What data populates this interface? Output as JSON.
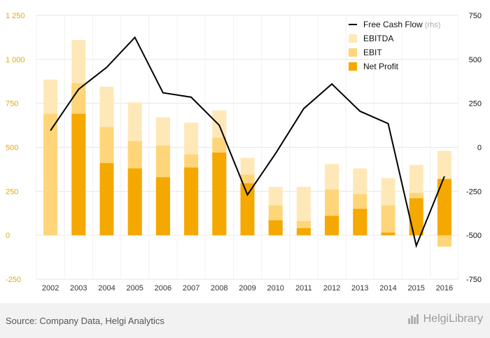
{
  "chart_data": {
    "type": "bar",
    "categories": [
      "2002",
      "2003",
      "2004",
      "2005",
      "2006",
      "2007",
      "2008",
      "2009",
      "2010",
      "2011",
      "2012",
      "2013",
      "2014",
      "2015",
      "2016"
    ],
    "series": [
      {
        "name": "EBITDA",
        "axis": "left",
        "color": "#ffe8b8",
        "values": [
          885,
          1110,
          845,
          755,
          670,
          640,
          710,
          440,
          275,
          275,
          405,
          380,
          325,
          400,
          480
        ]
      },
      {
        "name": "EBIT",
        "axis": "left",
        "color": "#ffd57a",
        "values": [
          690,
          865,
          615,
          535,
          510,
          460,
          555,
          345,
          170,
          80,
          260,
          235,
          170,
          240,
          -65
        ]
      },
      {
        "name": "Net Profit",
        "axis": "left",
        "color": "#f5a800",
        "values": [
          0,
          690,
          410,
          380,
          330,
          385,
          470,
          295,
          85,
          40,
          110,
          150,
          15,
          210,
          320
        ]
      },
      {
        "name": "Free Cash Flow",
        "suffix": "(rhs)",
        "axis": "right",
        "type": "line",
        "color": "#000000",
        "values": [
          95,
          330,
          455,
          625,
          310,
          285,
          125,
          -270,
          -35,
          220,
          360,
          205,
          135,
          -560,
          -165
        ]
      }
    ],
    "left_axis": {
      "min": -250,
      "max": 1250,
      "ticks": [
        "-250",
        "0",
        "250",
        "500",
        "750",
        "1 000",
        "1 250"
      ]
    },
    "right_axis": {
      "min": -750,
      "max": 750,
      "ticks": [
        "-750",
        "-500",
        "-250",
        "0",
        "250",
        "500",
        "750"
      ]
    },
    "legend_position": "top-right",
    "grid": true
  },
  "footer": {
    "source": "Source: Company Data, Helgi Analytics",
    "logo": "HelgiLibrary"
  }
}
